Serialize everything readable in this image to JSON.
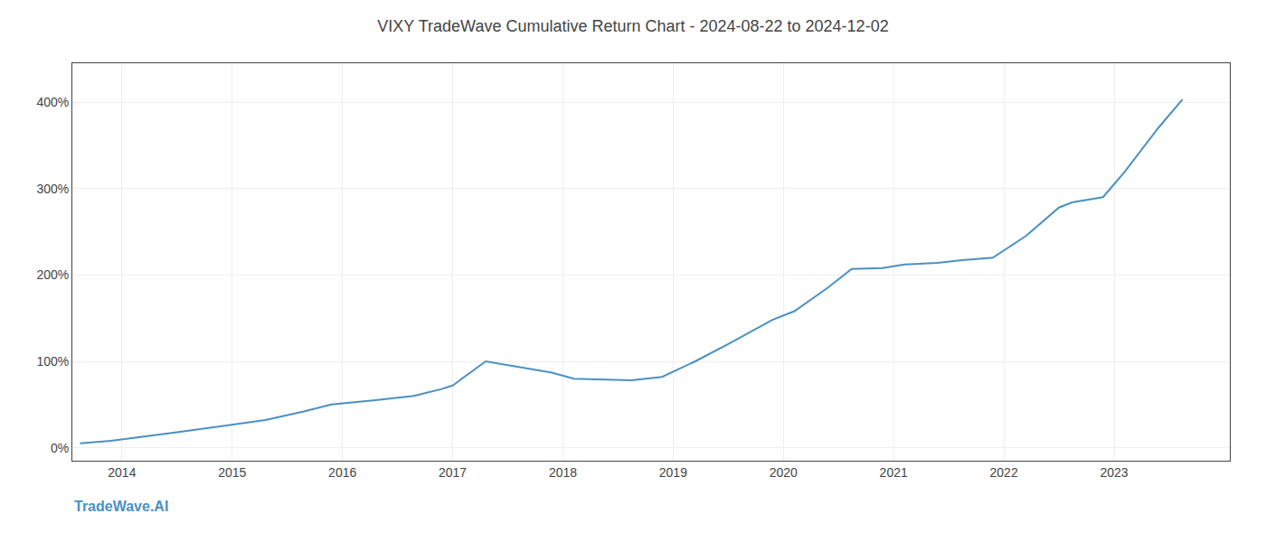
{
  "chart_data": {
    "type": "line",
    "title": "VIXY TradeWave Cumulative Return Chart - 2024-08-22 to 2024-12-02",
    "annotations": [
      "TradeWave.AI"
    ],
    "x": [
      2013.62,
      2013.9,
      2014.5,
      2014.9,
      2015.3,
      2015.65,
      2015.9,
      2016.3,
      2016.65,
      2016.9,
      2017.0,
      2017.3,
      2017.62,
      2017.9,
      2018.1,
      2018.62,
      2018.9,
      2019.2,
      2019.5,
      2019.75,
      2019.9,
      2020.1,
      2020.4,
      2020.62,
      2020.9,
      2021.1,
      2021.4,
      2021.62,
      2021.9,
      2022.2,
      2022.5,
      2022.62,
      2022.9,
      2023.1,
      2023.4,
      2023.62
    ],
    "values": [
      5,
      8,
      18,
      25,
      32,
      42,
      50,
      55,
      60,
      68,
      72,
      100,
      93,
      87,
      80,
      78,
      82,
      100,
      120,
      138,
      148,
      158,
      185,
      207,
      208,
      212,
      214,
      217,
      220,
      245,
      278,
      284,
      290,
      320,
      370,
      403
    ],
    "color": "#4a90c4",
    "xlim": [
      2013.55,
      2024.05
    ],
    "xticks": [
      2014,
      2015,
      2016,
      2017,
      2018,
      2019,
      2020,
      2021,
      2022,
      2023
    ],
    "ylim": [
      -15,
      445
    ],
    "yticks": [
      {
        "value": 0,
        "label": "0%"
      },
      {
        "value": 100,
        "label": "100%"
      },
      {
        "value": 200,
        "label": "200%"
      },
      {
        "value": 300,
        "label": "300%"
      },
      {
        "value": 400,
        "label": "400%"
      }
    ],
    "grid": true
  }
}
